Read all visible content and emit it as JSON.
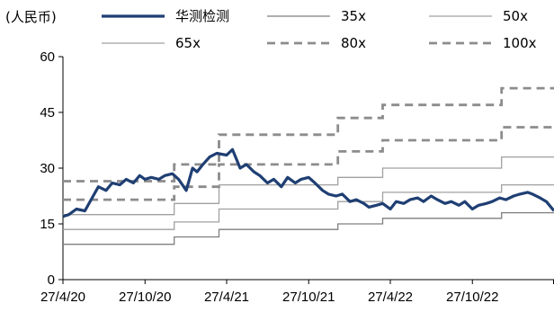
{
  "chart_data": {
    "type": "line",
    "unit_label": "(人民币)",
    "title": "",
    "xlabel": "",
    "ylabel": "",
    "x_tick_labels": [
      "27/4/20",
      "27/10/20",
      "27/4/21",
      "27/10/21",
      "27/4/22",
      "27/10/22"
    ],
    "x_range": [
      "2020-04-27",
      "2023-04-27"
    ],
    "ylim": [
      0,
      60
    ],
    "y_ticks": [
      0,
      15,
      30,
      45,
      60
    ],
    "grid": false,
    "legend_placement": "top",
    "colors": {
      "price": "#1f3f73",
      "band_solid": "#a0a0a0",
      "band_solid_35": "#7f7f7f",
      "band_dashed": "#8c8c8c"
    },
    "series": [
      {
        "name": "华测检测",
        "style": "thick-solid",
        "x": [
          "2020-04-27",
          "2020-05-10",
          "2020-05-27",
          "2020-06-15",
          "2020-07-01",
          "2020-07-15",
          "2020-08-01",
          "2020-08-15",
          "2020-09-01",
          "2020-09-15",
          "2020-10-01",
          "2020-10-15",
          "2020-10-27",
          "2020-11-10",
          "2020-11-27",
          "2020-12-10",
          "2020-12-27",
          "2021-01-10",
          "2021-01-27",
          "2021-02-10",
          "2021-02-20",
          "2021-03-05",
          "2021-03-20",
          "2021-04-05",
          "2021-04-27",
          "2021-05-10",
          "2021-05-27",
          "2021-06-10",
          "2021-06-27",
          "2021-07-10",
          "2021-07-27",
          "2021-08-10",
          "2021-08-27",
          "2021-09-10",
          "2021-09-27",
          "2021-10-10",
          "2021-10-27",
          "2021-11-10",
          "2021-11-27",
          "2021-12-10",
          "2021-12-27",
          "2022-01-10",
          "2022-01-27",
          "2022-02-10",
          "2022-02-27",
          "2022-03-10",
          "2022-03-27",
          "2022-04-10",
          "2022-04-27",
          "2022-05-10",
          "2022-05-27",
          "2022-06-10",
          "2022-06-27",
          "2022-07-10",
          "2022-07-27",
          "2022-08-10",
          "2022-08-27",
          "2022-09-10",
          "2022-09-27",
          "2022-10-10",
          "2022-10-27",
          "2022-11-10",
          "2022-11-27",
          "2022-12-10",
          "2022-12-27",
          "2023-01-10",
          "2023-01-27",
          "2023-02-10",
          "2023-02-27",
          "2023-03-10",
          "2023-03-27",
          "2023-04-10",
          "2023-04-27"
        ],
        "values": [
          17,
          17.5,
          19,
          18.5,
          22,
          25,
          24,
          26,
          25.5,
          27,
          26,
          28,
          27,
          27.5,
          27,
          28,
          28.5,
          27,
          24,
          30,
          29,
          31,
          33,
          34,
          33.5,
          35,
          30,
          31,
          29,
          28,
          26,
          27,
          25,
          27.5,
          26,
          27,
          27.5,
          26,
          24,
          23,
          22.5,
          23,
          21,
          21.5,
          20.5,
          19.5,
          20,
          20.5,
          19,
          21,
          20.5,
          21.5,
          22,
          21,
          22.5,
          21.5,
          20.5,
          21,
          20,
          21,
          19,
          20,
          20.5,
          21,
          22,
          21.5,
          22.5,
          23,
          23.5,
          23,
          22,
          21,
          18.5
        ]
      },
      {
        "name": "35x",
        "style": "thin-solid",
        "x": [
          "2020-04-27",
          "2020-12-31",
          "2020-12-31",
          "2021-04-10",
          "2021-04-10",
          "2021-12-31",
          "2021-12-31",
          "2022-04-10",
          "2022-04-10",
          "2022-12-31",
          "2022-12-31",
          "2023-04-27"
        ],
        "values": [
          9.5,
          9.5,
          11.5,
          11.5,
          13.5,
          13.5,
          15,
          15,
          16.5,
          16.5,
          18,
          18
        ]
      },
      {
        "name": "50x",
        "style": "thin-solid",
        "x": [
          "2020-04-27",
          "2020-12-31",
          "2020-12-31",
          "2021-04-10",
          "2021-04-10",
          "2021-12-31",
          "2021-12-31",
          "2022-04-10",
          "2022-04-10",
          "2022-12-31",
          "2022-12-31",
          "2023-04-27"
        ],
        "values": [
          13.5,
          13.5,
          15.5,
          15.5,
          19,
          19,
          21,
          21,
          23.5,
          23.5,
          25.5,
          25.5
        ]
      },
      {
        "name": "65x",
        "style": "thin-solid",
        "x": [
          "2020-04-27",
          "2020-12-31",
          "2020-12-31",
          "2021-04-10",
          "2021-04-10",
          "2021-12-31",
          "2021-12-31",
          "2022-04-10",
          "2022-04-10",
          "2022-12-31",
          "2022-12-31",
          "2023-04-27"
        ],
        "values": [
          17.5,
          17.5,
          20.5,
          20.5,
          25.5,
          25.5,
          27.5,
          27.5,
          30,
          30,
          33,
          33
        ]
      },
      {
        "name": "80x",
        "style": "dashed",
        "x": [
          "2020-04-27",
          "2020-12-31",
          "2020-12-31",
          "2021-04-10",
          "2021-04-10",
          "2021-12-31",
          "2021-12-31",
          "2022-04-10",
          "2022-04-10",
          "2022-12-31",
          "2022-12-31",
          "2023-04-27"
        ],
        "values": [
          21.5,
          21.5,
          25,
          25,
          31,
          31,
          34.5,
          34.5,
          37.5,
          37.5,
          41,
          41
        ]
      },
      {
        "name": "100x",
        "style": "dashed",
        "x": [
          "2020-04-27",
          "2020-12-31",
          "2020-12-31",
          "2021-04-10",
          "2021-04-10",
          "2021-12-31",
          "2021-12-31",
          "2022-04-10",
          "2022-04-10",
          "2022-12-31",
          "2022-12-31",
          "2023-04-27"
        ],
        "values": [
          26.5,
          26.5,
          31,
          31,
          39,
          39,
          43.5,
          43.5,
          47,
          47,
          51.5,
          51.5
        ]
      }
    ]
  }
}
